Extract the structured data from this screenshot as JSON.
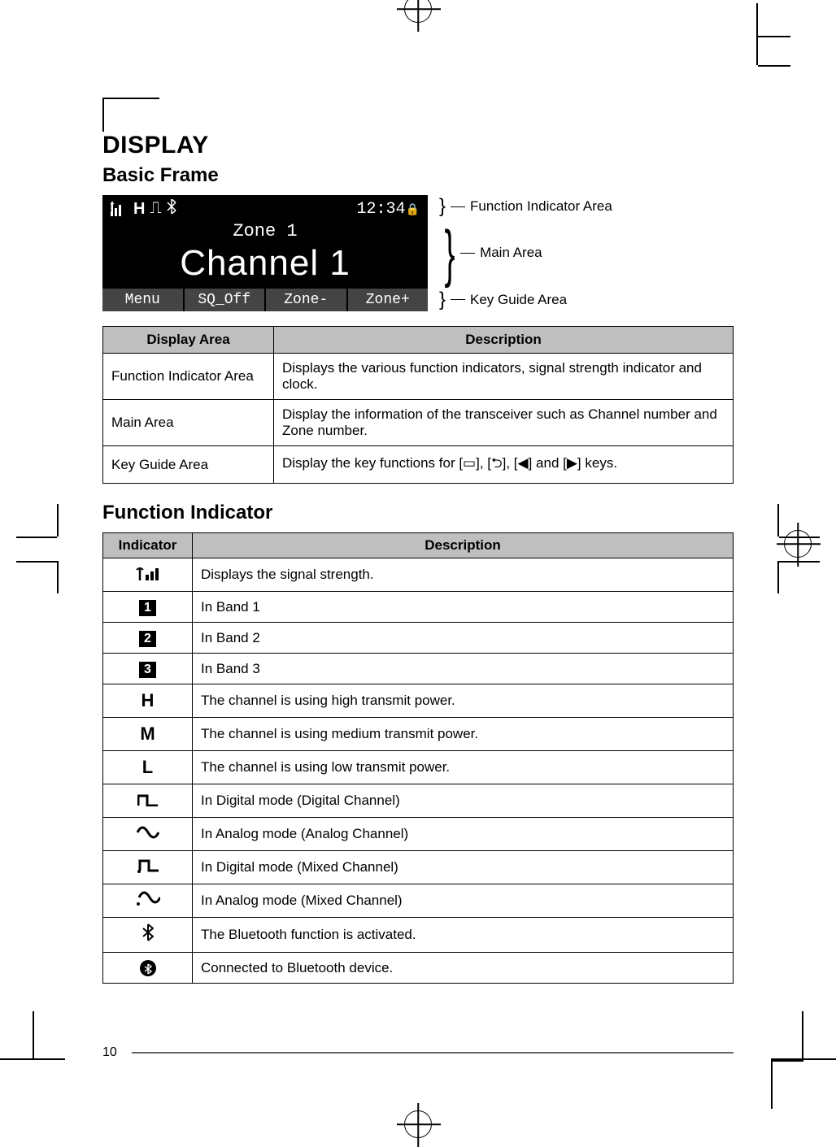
{
  "headings": {
    "display": "DISPLAY",
    "basic_frame": "Basic Frame",
    "function_indicator": "Function Indicator"
  },
  "lcd": {
    "clock": "12:34",
    "lock_glyph": "🔒",
    "zone_label": "Zone 1",
    "channel_label": "Channel 1",
    "keys": [
      "Menu",
      "SQ_Off",
      "Zone-",
      "Zone+"
    ],
    "top_icons": {
      "signal": "📶",
      "power": "H",
      "mode": "⎍",
      "bt": "⤋"
    }
  },
  "callouts": {
    "function_indicator": "Function Indicator Area",
    "main_area": "Main Area",
    "key_guide": "Key Guide Area"
  },
  "area_table": {
    "headers": [
      "Display Area",
      "Description"
    ],
    "rows": [
      [
        "Function Indicator Area",
        "Displays the various function indicators, signal strength indicator and clock."
      ],
      [
        "Main Area",
        "Display the information of the transceiver such as Channel number and Zone number."
      ],
      [
        "Key Guide Area",
        "Display the key functions for [▭], [⮌], [◀] and [▶] keys."
      ]
    ]
  },
  "indicator_table": {
    "headers": [
      "Indicator",
      "Description"
    ],
    "rows": [
      {
        "icon_type": "signal",
        "desc": "Displays the signal strength."
      },
      {
        "icon_type": "badge",
        "icon_text": "1",
        "desc": "In Band 1"
      },
      {
        "icon_type": "badge",
        "icon_text": "2",
        "desc": "In Band 2"
      },
      {
        "icon_type": "badge",
        "icon_text": "3",
        "desc": "In Band 3"
      },
      {
        "icon_type": "bold",
        "icon_text": "H",
        "desc": "The channel is using high transmit power."
      },
      {
        "icon_type": "bold",
        "icon_text": "M",
        "desc": "The channel is using medium transmit power."
      },
      {
        "icon_type": "bold",
        "icon_text": "L",
        "desc": "The channel is using low transmit power."
      },
      {
        "icon_type": "glyph",
        "icon_text": "⎍",
        "desc": "In Digital mode (Digital Channel)"
      },
      {
        "icon_type": "glyph",
        "icon_text": "∿",
        "desc": "In Analog mode (Analog Channel)"
      },
      {
        "icon_type": "glyph",
        "icon_text": "⎍.",
        "desc": "In Digital mode (Mixed Channel)"
      },
      {
        "icon_type": "glyph",
        "icon_text": "∿.",
        "desc": "In Analog mode (Mixed Channel)"
      },
      {
        "icon_type": "bt",
        "desc": "The Bluetooth function is activated."
      },
      {
        "icon_type": "bt_filled",
        "desc": "Connected to Bluetooth device."
      }
    ]
  },
  "page_number": "10",
  "styling": {
    "table_header_bg": "#bfbfbf",
    "lcd_bg": "#000000",
    "lcd_fg": "#ffffff",
    "key_bg": "#444444",
    "body_font_size": 17,
    "h1_font_size": 30,
    "h2_font_size": 24
  }
}
